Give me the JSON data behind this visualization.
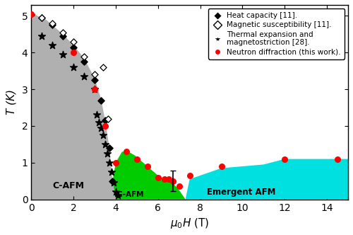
{
  "title": "",
  "xlabel": "$\\mu_0H$ (T)",
  "ylabel": "$T$ (K)",
  "xlim": [
    0,
    15
  ],
  "ylim": [
    0,
    5.3
  ],
  "xticks": [
    0,
    2,
    4,
    6,
    8,
    10,
    12,
    14
  ],
  "yticks": [
    0,
    1,
    2,
    3,
    4,
    5
  ],
  "cafm_boundary_H": [
    0.0,
    0.3,
    0.7,
    1.0,
    1.5,
    2.0,
    2.5,
    3.0,
    3.3,
    3.5,
    3.7,
    3.85,
    4.0
  ],
  "cafm_boundary_T": [
    5.1,
    5.0,
    4.9,
    4.75,
    4.5,
    4.2,
    3.85,
    3.3,
    2.75,
    2.15,
    1.4,
    0.5,
    0.0
  ],
  "icafm_right_H": [
    4.0,
    4.3,
    4.6,
    4.9,
    5.2,
    5.5,
    5.8,
    6.1,
    6.4,
    6.7,
    7.0,
    7.3
  ],
  "icafm_right_T": [
    1.0,
    1.3,
    1.3,
    1.2,
    1.05,
    0.9,
    0.75,
    0.6,
    0.52,
    0.45,
    0.25,
    0.0
  ],
  "emergent_boundary_H": [
    7.3,
    7.5,
    8.0,
    9.0,
    10.0,
    11.0,
    12.0,
    13.0,
    14.0,
    15.0
  ],
  "emergent_boundary_T": [
    0.0,
    0.55,
    0.65,
    0.85,
    0.9,
    0.95,
    1.1,
    1.1,
    1.1,
    1.1
  ],
  "heat_capacity_H": [
    0.0,
    0.5,
    1.0,
    1.5,
    2.0,
    2.5,
    3.0,
    3.3,
    3.5,
    3.7,
    3.85
  ],
  "heat_capacity_T": [
    5.05,
    4.95,
    4.75,
    4.45,
    4.15,
    3.75,
    3.25,
    2.7,
    2.15,
    1.4,
    0.5
  ],
  "mag_sus_H": [
    0.5,
    1.0,
    1.5,
    2.0,
    2.5,
    3.0,
    3.4,
    3.65
  ],
  "mag_sus_T": [
    4.95,
    4.8,
    4.55,
    4.3,
    3.9,
    3.4,
    3.6,
    2.2
  ],
  "thermal_exp_H": [
    0.5,
    1.0,
    1.5,
    2.0,
    2.5,
    3.0,
    3.1,
    3.2,
    3.3,
    3.4,
    3.5,
    3.6,
    3.7,
    3.8,
    3.9,
    4.0,
    4.1
  ],
  "thermal_exp_T": [
    4.45,
    4.2,
    3.95,
    3.6,
    3.35,
    3.0,
    2.3,
    2.1,
    1.95,
    1.75,
    1.5,
    1.25,
    1.0,
    0.75,
    0.45,
    0.2,
    0.1
  ],
  "neutron_H": [
    0.0,
    2.0,
    3.0,
    3.5,
    4.0,
    4.5,
    5.0,
    5.5,
    6.0,
    6.3,
    6.5,
    6.7,
    7.0,
    7.5,
    9.0,
    12.0,
    14.5
  ],
  "neutron_T": [
    5.05,
    4.0,
    3.0,
    2.0,
    1.0,
    1.3,
    1.1,
    0.9,
    0.6,
    0.55,
    0.55,
    0.5,
    0.35,
    0.65,
    0.9,
    1.1,
    1.1
  ],
  "errorbar_H": [
    6.7
  ],
  "errorbar_T": [
    0.5
  ],
  "errorbar_yerr": [
    0.28
  ],
  "cafm_color": "#b0b0b0",
  "icafm_color": "#00cc00",
  "emergent_color": "#00e0e0",
  "neutron_color": "#ff0000",
  "cafm_label": "C-AFM",
  "icafm_label": "IC-AFM",
  "emergent_label": "Emergent AFM",
  "legend_labels": [
    "Heat capacity [11].",
    "Magnetic susceptibility [11].",
    "Thermal expansion and\nmagnetostriction [28].",
    "Neutron diffraction (this work)."
  ]
}
